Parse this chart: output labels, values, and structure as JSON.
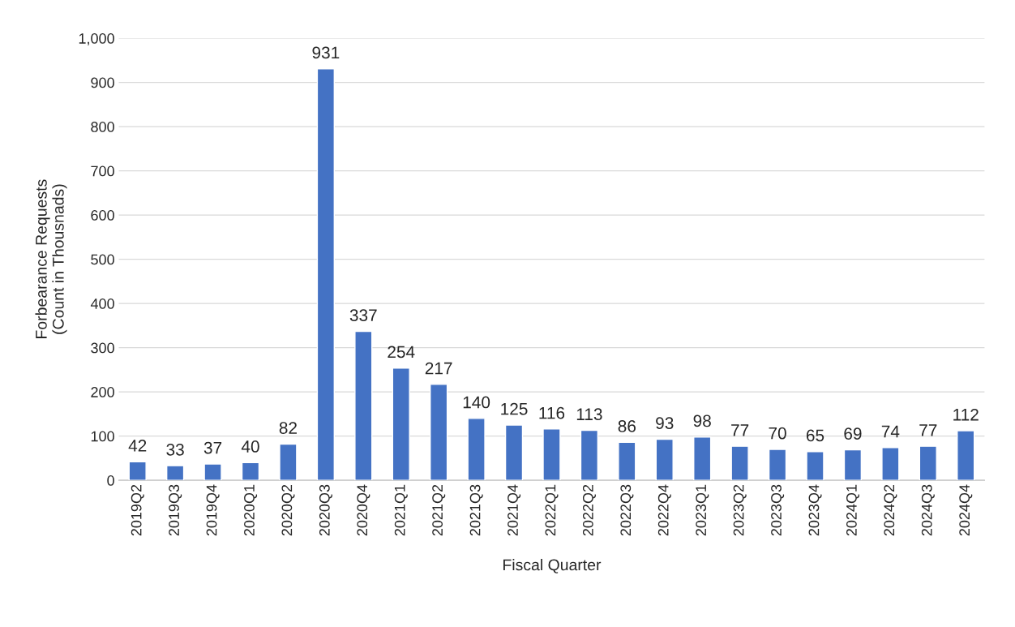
{
  "chart_data": {
    "type": "bar",
    "xlabel": "Fiscal Quarter",
    "ylabel": "Forbearance Requests\n(Count in Thousnads)",
    "categories": [
      "2019Q2",
      "2019Q3",
      "2019Q4",
      "2020Q1",
      "2020Q2",
      "2020Q3",
      "2020Q4",
      "2021Q1",
      "2021Q2",
      "2021Q3",
      "2021Q4",
      "2022Q1",
      "2022Q2",
      "2022Q3",
      "2022Q4",
      "2023Q1",
      "2023Q2",
      "2023Q3",
      "2023Q4",
      "2024Q1",
      "2024Q2",
      "2024Q3",
      "2024Q4"
    ],
    "values": [
      42,
      33,
      37,
      40,
      82,
      931,
      337,
      254,
      217,
      140,
      125,
      116,
      113,
      86,
      93,
      98,
      77,
      70,
      65,
      69,
      74,
      77,
      112
    ],
    "color": "#4472c4",
    "ylim": [
      0,
      1000
    ],
    "yticks": [
      0,
      100,
      200,
      300,
      400,
      500,
      600,
      700,
      800,
      900,
      {
        "value": 1000,
        "label": "1,000"
      }
    ],
    "grid": "y",
    "data_labels": true
  }
}
